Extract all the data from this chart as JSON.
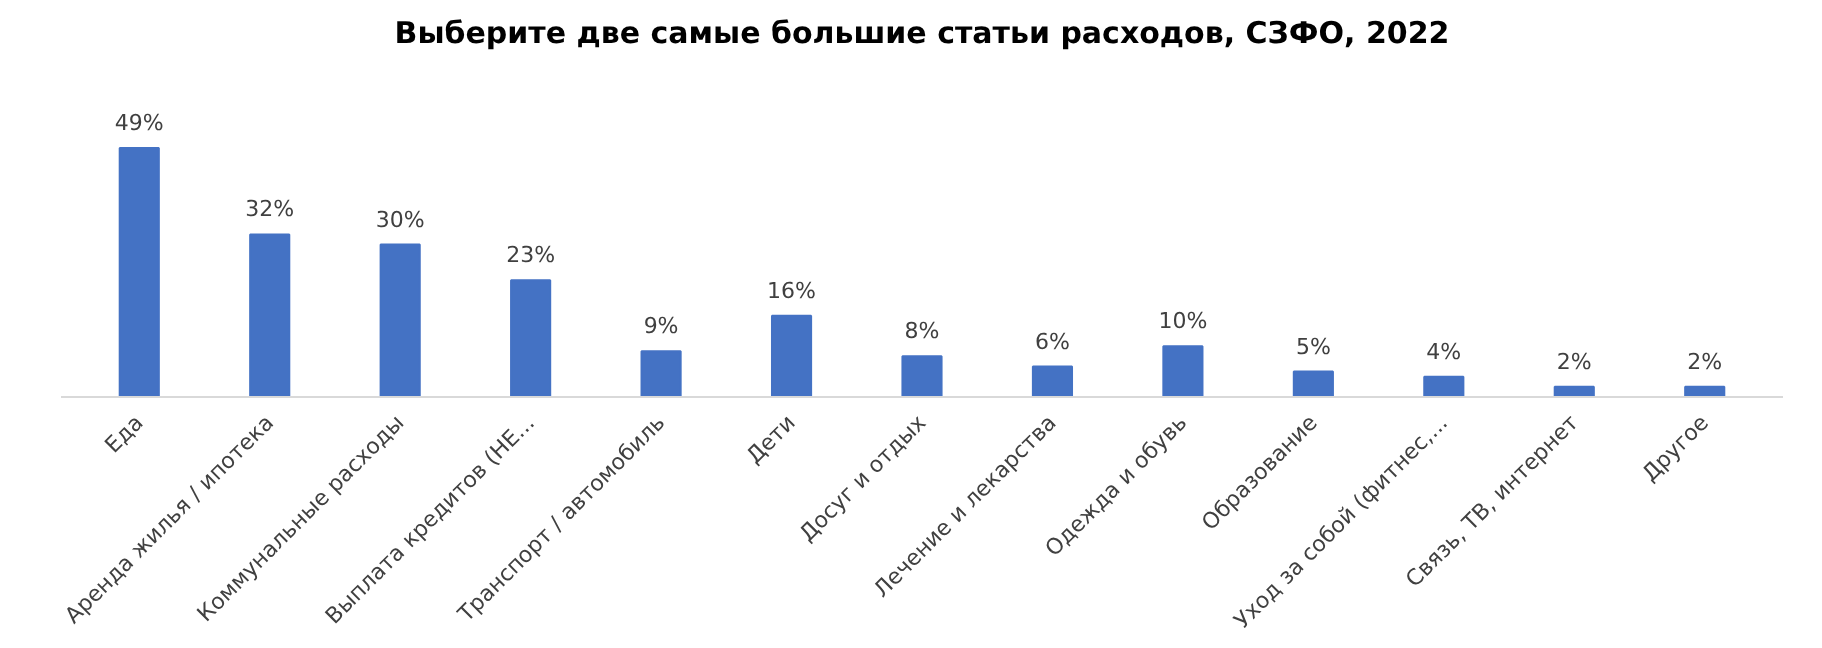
{
  "chart_data": {
    "type": "bar",
    "title": "Выберите две самые большие статьи расходов, СЗФО, 2022",
    "categories": [
      "Еда",
      "Аренда жилья / ипотека",
      "Коммунальные расходы",
      "Выплата кредитов (НЕ...",
      "Транспорт / автомобиль",
      "Дети",
      "Досуг и отдых",
      "Лечение и лекарства",
      "Одежда и обувь",
      "Образование",
      "Уход за собой (фитнес,...",
      "Связь, ТВ, интернет",
      "Другое"
    ],
    "values": [
      49,
      32,
      30,
      23,
      9,
      16,
      8,
      6,
      10,
      5,
      4,
      2,
      2
    ],
    "value_labels": [
      "49%",
      "32%",
      "30%",
      "23%",
      "9%",
      "16%",
      "8%",
      "6%",
      "10%",
      "5%",
      "4%",
      "2%",
      "2%"
    ],
    "color": "#4472c4",
    "grid": false
  }
}
